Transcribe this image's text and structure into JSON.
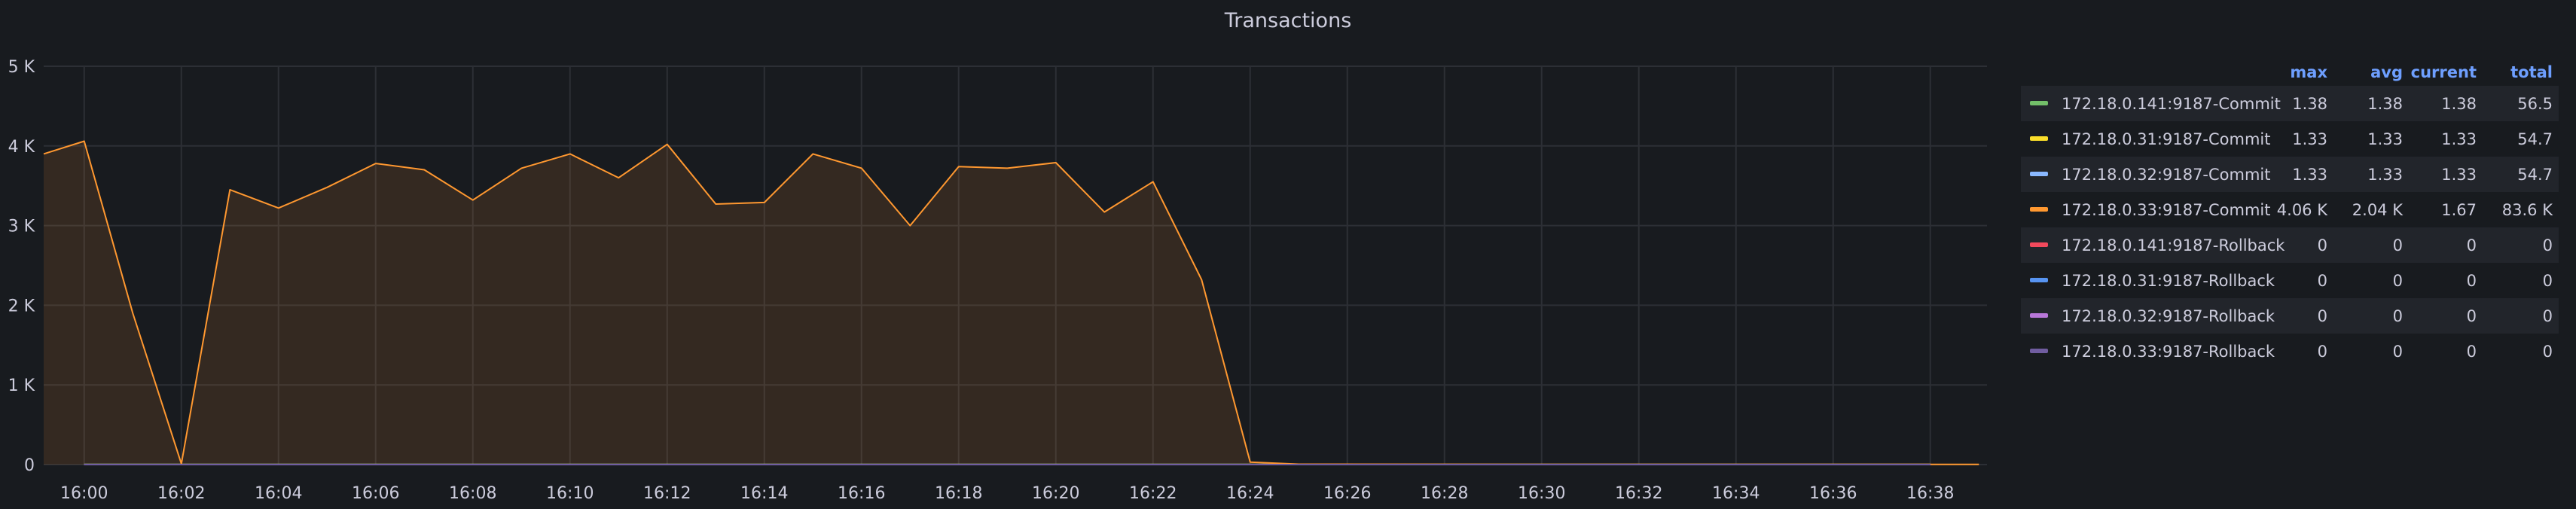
{
  "chart_data": {
    "type": "area",
    "title": "Transactions",
    "y_ticks": [
      "0",
      "1 K",
      "2 K",
      "3 K",
      "4 K",
      "5 K"
    ],
    "ylim": [
      0,
      5000
    ],
    "x_ticks": [
      "16:00",
      "16:02",
      "16:04",
      "16:06",
      "16:08",
      "16:10",
      "16:12",
      "16:14",
      "16:16",
      "16:18",
      "16:20",
      "16:22",
      "16:24",
      "16:26",
      "16:28",
      "16:30",
      "16:32",
      "16:34",
      "16:36",
      "16:38"
    ],
    "xlim": [
      "15:59:10",
      "16:39:10"
    ],
    "grid": true,
    "legend_position": "right",
    "legend_columns": [
      "max",
      "avg",
      "current",
      "total"
    ],
    "series": [
      {
        "name": "172.18.0.141:9187-Commit",
        "color": "#73bf69",
        "max": "1.38",
        "avg": "1.38",
        "current": "1.38",
        "total": "56.5",
        "x": [
          "16:00",
          "16:38"
        ],
        "values": [
          1.38,
          1.38
        ]
      },
      {
        "name": "172.18.0.31:9187-Commit",
        "color": "#fade2a",
        "max": "1.33",
        "avg": "1.33",
        "current": "1.33",
        "total": "54.7",
        "x": [
          "16:00",
          "16:38"
        ],
        "values": [
          1.33,
          1.33
        ]
      },
      {
        "name": "172.18.0.32:9187-Commit",
        "color": "#8ab8ff",
        "max": "1.33",
        "avg": "1.33",
        "current": "1.33",
        "total": "54.7",
        "x": [
          "16:00",
          "16:38"
        ],
        "values": [
          1.33,
          1.33
        ]
      },
      {
        "name": "172.18.0.33:9187-Commit",
        "color": "#ff9830",
        "max": "4.06 K",
        "avg": "2.04 K",
        "current": "1.67",
        "total": "83.6 K",
        "x": [
          "15:59:10",
          "16:00",
          "16:01",
          "16:02",
          "16:03",
          "16:04",
          "16:05",
          "16:06",
          "16:07",
          "16:08",
          "16:09",
          "16:10",
          "16:11",
          "16:12",
          "16:13",
          "16:14",
          "16:15",
          "16:16",
          "16:17",
          "16:18",
          "16:19",
          "16:20",
          "16:21",
          "16:22",
          "16:23",
          "16:24",
          "16:25",
          "16:30",
          "16:35",
          "16:39"
        ],
        "values": [
          3900,
          4060,
          1900,
          10,
          3450,
          3220,
          3480,
          3780,
          3700,
          3320,
          3720,
          3900,
          3600,
          4020,
          3270,
          3290,
          3900,
          3720,
          3000,
          3740,
          3720,
          3790,
          3170,
          3550,
          2320,
          30,
          5,
          2,
          2,
          2
        ]
      },
      {
        "name": "172.18.0.141:9187-Rollback",
        "color": "#f2495c",
        "max": "0",
        "avg": "0",
        "current": "0",
        "total": "0",
        "x": [
          "16:00",
          "16:38"
        ],
        "values": [
          0,
          0
        ]
      },
      {
        "name": "172.18.0.31:9187-Rollback",
        "color": "#5794f2",
        "max": "0",
        "avg": "0",
        "current": "0",
        "total": "0",
        "x": [
          "16:00",
          "16:38"
        ],
        "values": [
          0,
          0
        ]
      },
      {
        "name": "172.18.0.32:9187-Rollback",
        "color": "#b877d9",
        "max": "0",
        "avg": "0",
        "current": "0",
        "total": "0",
        "x": [
          "16:00",
          "16:38"
        ],
        "values": [
          0,
          0
        ]
      },
      {
        "name": "172.18.0.33:9187-Rollback",
        "color": "#705da0",
        "max": "0",
        "avg": "0",
        "current": "0",
        "total": "0",
        "x": [
          "16:00",
          "16:38"
        ],
        "values": [
          0,
          0
        ]
      }
    ]
  }
}
